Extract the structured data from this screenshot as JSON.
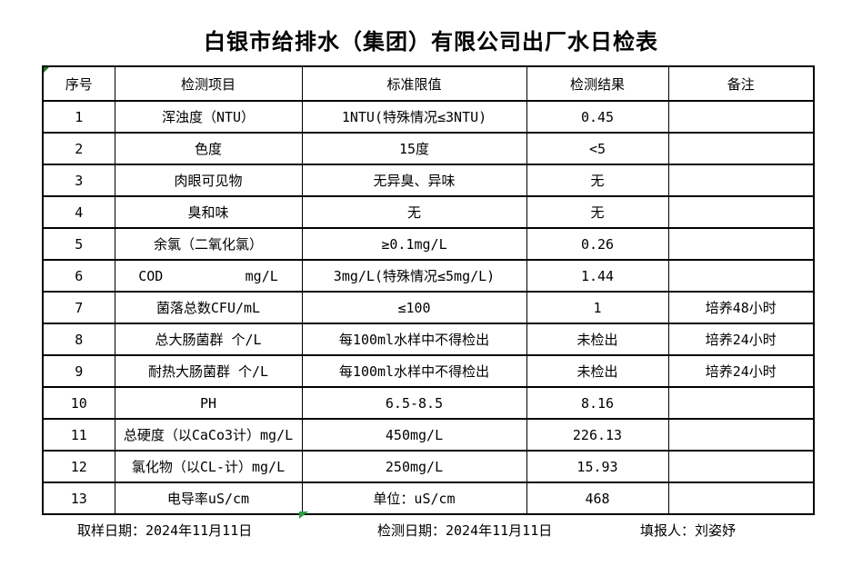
{
  "title": "白银市给排水（集团）有限公司出厂水日检表",
  "colors": {
    "table_border": "#000000",
    "corner_marker_green": "#1e7a2e",
    "fill_handle_green": "#2f9e44"
  },
  "icons": {
    "top_left_marker": "excel-corner-marker",
    "bottom_marker": "excel-fill-handle"
  },
  "table": {
    "headers": [
      "序号",
      "检测项目",
      "标准限值",
      "检测结果",
      "备注"
    ],
    "rows": [
      [
        "1",
        "浑浊度（NTU）",
        "1NTU(特殊情况≤3NTU)",
        "0.45",
        ""
      ],
      [
        "2",
        "色度",
        "15度",
        "<5",
        ""
      ],
      [
        "3",
        "肉眼可见物",
        "无异臭、异味",
        "无",
        ""
      ],
      [
        "4",
        "臭和味",
        "无",
        "无",
        ""
      ],
      [
        "5",
        "余氯（二氧化氯）",
        "≥0.1mg/L",
        "0.26",
        ""
      ],
      [
        "6",
        "COD          mg/L",
        "3mg/L(特殊情况≤5mg/L)",
        "1.44",
        ""
      ],
      [
        "7",
        "菌落总数CFU/mL",
        "≤100",
        "1",
        "培养48小时"
      ],
      [
        "8",
        "总大肠菌群 个/L",
        "每100ml水样中不得检出",
        "未检出",
        "培养24小时"
      ],
      [
        "9",
        "耐热大肠菌群 个/L",
        "每100ml水样中不得检出",
        "未检出",
        "培养24小时"
      ],
      [
        "10",
        "PH",
        "6.5-8.5",
        "8.16",
        ""
      ],
      [
        "11",
        "总硬度（以CaCo3计）mg/L",
        "450mg/L",
        "226.13",
        ""
      ],
      [
        "12",
        "氯化物（以CL-计）mg/L",
        "250mg/L",
        "15.93",
        ""
      ],
      [
        "13",
        "电导率uS/cm",
        "单位：uS/cm",
        "468",
        ""
      ]
    ]
  },
  "footer": {
    "sampling_date": "取样日期：2024年11月11日",
    "testing_date": "检测日期：2024年11月11日",
    "reporter": "填报人：刘姿妤"
  }
}
